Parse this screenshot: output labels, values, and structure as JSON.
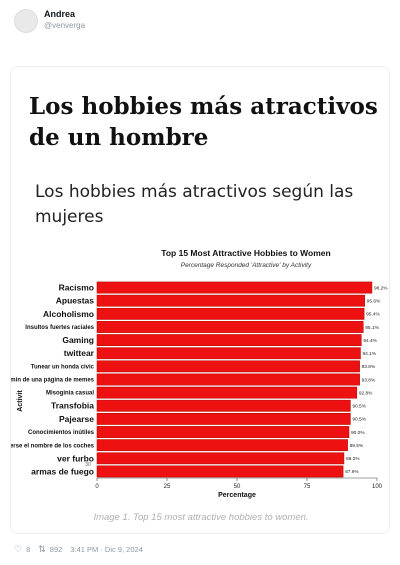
{
  "tweet": {
    "display_name": "Andrea",
    "handle": "@venverga",
    "likes": "8",
    "retweets": "892",
    "timestamp": "3:41 PM · Dic 9, 2024",
    "like_icon": "heart-icon",
    "retweet_icon": "retweet-icon"
  },
  "media": {
    "title": "Los hobbies más atractivos de un hombre",
    "subtitle": "Los hobbies más atractivos según las mujeres",
    "caption": "Image 1. Top 15 most attractive hobbies to women."
  },
  "colors": {
    "bar": "#ee1111",
    "bar_stroke": "#b30000"
  },
  "chart_data": {
    "type": "bar",
    "orientation": "horizontal",
    "title": "Top 15 Most Attractive Hobbies to Women",
    "subtitle": "Percentage Responded 'Attractive' by Activity",
    "xlabel": "Percentage",
    "ylabel": "Activit",
    "xlim": [
      0,
      100
    ],
    "xticks": [
      "0",
      "25",
      "50",
      "75",
      "100"
    ],
    "categories": [
      "Racismo",
      "Apuestas",
      "Alcoholismo",
      "Insultos fuertes raciales",
      "Gaming",
      "twittear",
      "Tunear un honda civic",
      "Ser el admin de una página de memes",
      "Misoginia casual",
      "Transfobia",
      "Pajearse",
      "Conocimientos inútiles",
      "saberse el nombre de los coches",
      "ver furbo",
      "armas de fuego"
    ],
    "values": [
      98.2,
      95.6,
      95.4,
      95.1,
      94.4,
      94.1,
      93.8,
      93.8,
      92.8,
      90.5,
      90.5,
      90.0,
      89.5,
      88.2,
      87.9
    ],
    "value_labels": [
      "98.2%",
      "95.6%",
      "95.4%",
      "95.1%",
      "94.4%",
      "94.1%",
      "93.8%",
      "93.8%",
      "92.8%",
      "90.5%",
      "90.5%",
      "90.0%",
      "89.5%",
      "88.2%",
      "87.9%"
    ],
    "annotation": "30",
    "grid": false
  }
}
